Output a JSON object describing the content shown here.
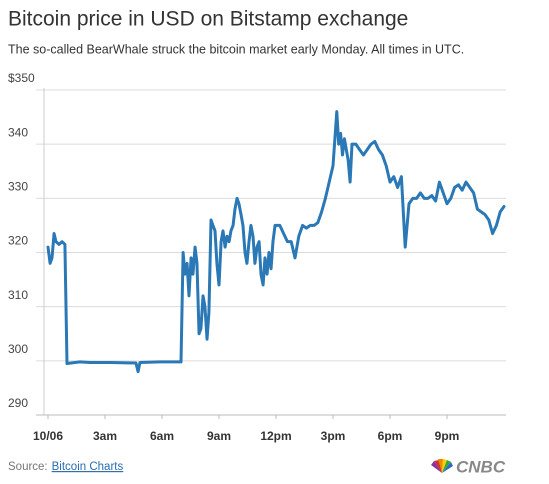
{
  "chart_data": {
    "type": "line",
    "title": "Bitcoin price in USD on Bitstamp exchange",
    "subtitle": "The so-called BearWhale struck the bitcoin market early Monday. All times in UTC.",
    "xlim": [
      0,
      24
    ],
    "ylim": [
      290,
      350
    ],
    "xticks": [
      {
        "value": 0,
        "label": "10/06"
      },
      {
        "value": 3,
        "label": "3am"
      },
      {
        "value": 6,
        "label": "6am"
      },
      {
        "value": 9,
        "label": "9am"
      },
      {
        "value": 12,
        "label": "12pm"
      },
      {
        "value": 15,
        "label": "3pm"
      },
      {
        "value": 18,
        "label": "6pm"
      },
      {
        "value": 21,
        "label": "9pm"
      }
    ],
    "yticks": [
      290,
      300,
      310,
      320,
      330,
      340,
      {
        "value": 350,
        "label": "$350"
      }
    ],
    "grid": true,
    "x": [
      0,
      0.11,
      0.21,
      0.32,
      0.42,
      0.58,
      0.74,
      0.89,
      1.0,
      1.68,
      2.21,
      3.26,
      4.63,
      4.74,
      4.84,
      5.89,
      7.0,
      7.11,
      7.21,
      7.32,
      7.42,
      7.53,
      7.63,
      7.74,
      7.84,
      7.95,
      8.05,
      8.16,
      8.26,
      8.37,
      8.47,
      8.58,
      8.68,
      8.79,
      8.89,
      9.0,
      9.11,
      9.21,
      9.32,
      9.42,
      9.53,
      9.63,
      9.74,
      9.84,
      9.95,
      10.05,
      10.16,
      10.26,
      10.37,
      10.47,
      10.58,
      10.68,
      10.79,
      10.89,
      11.0,
      11.11,
      11.21,
      11.32,
      11.42,
      11.53,
      11.63,
      11.74,
      11.84,
      11.95,
      12.2,
      12.4,
      12.6,
      12.8,
      13.0,
      13.2,
      13.4,
      13.6,
      13.8,
      14.0,
      14.2,
      14.4,
      14.6,
      14.8,
      15.0,
      15.2,
      15.3,
      15.4,
      15.5,
      15.6,
      15.8,
      15.9,
      16.0,
      16.2,
      16.4,
      16.6,
      16.8,
      17.0,
      17.2,
      17.4,
      17.6,
      17.8,
      18.0,
      18.2,
      18.4,
      18.6,
      18.8,
      19.0,
      19.2,
      19.4,
      19.6,
      19.8,
      20.0,
      20.2,
      20.4,
      20.6,
      20.8,
      21.0,
      21.2,
      21.4,
      21.6,
      21.8,
      22.0,
      22.2,
      22.4,
      22.6,
      22.8,
      23.0,
      23.2,
      23.4,
      23.6,
      23.8,
      24.0
    ],
    "series": [
      {
        "name": "Bitcoin price",
        "color": "#2a78b5",
        "values": [
          321,
          318,
          319,
          323.5,
          322,
          321.5,
          322,
          321.5,
          299.5,
          299.8,
          299.7,
          299.7,
          299.6,
          298,
          299.7,
          299.8,
          299.8,
          320,
          316,
          318,
          312,
          319,
          316,
          321,
          318,
          305,
          306,
          312,
          310,
          304,
          309,
          326,
          325,
          324,
          318,
          314,
          322,
          324,
          321,
          323,
          322,
          324,
          325,
          328,
          330,
          329,
          327,
          325,
          320,
          318,
          322,
          325,
          323,
          318,
          321,
          322,
          316,
          314,
          319,
          316,
          320,
          317,
          322,
          325,
          325,
          323.5,
          322,
          322,
          319,
          323,
          325,
          324.5,
          325,
          325,
          325.5,
          327.5,
          330,
          333,
          336,
          346,
          340,
          342,
          338,
          341,
          337,
          333,
          340,
          340,
          339,
          338,
          339,
          340,
          340.5,
          339,
          338,
          336,
          333,
          334,
          332,
          334,
          321,
          329,
          330,
          330,
          331,
          330,
          330,
          330.5,
          329.5,
          333,
          331,
          329,
          330,
          332,
          332.5,
          331.5,
          333,
          332,
          331,
          328,
          327.5,
          327,
          326,
          323.5,
          325,
          327.5,
          328.5
        ]
      }
    ]
  },
  "source": {
    "label": "Source:",
    "link": "Bitcoin Charts"
  },
  "logo": "CNBC"
}
